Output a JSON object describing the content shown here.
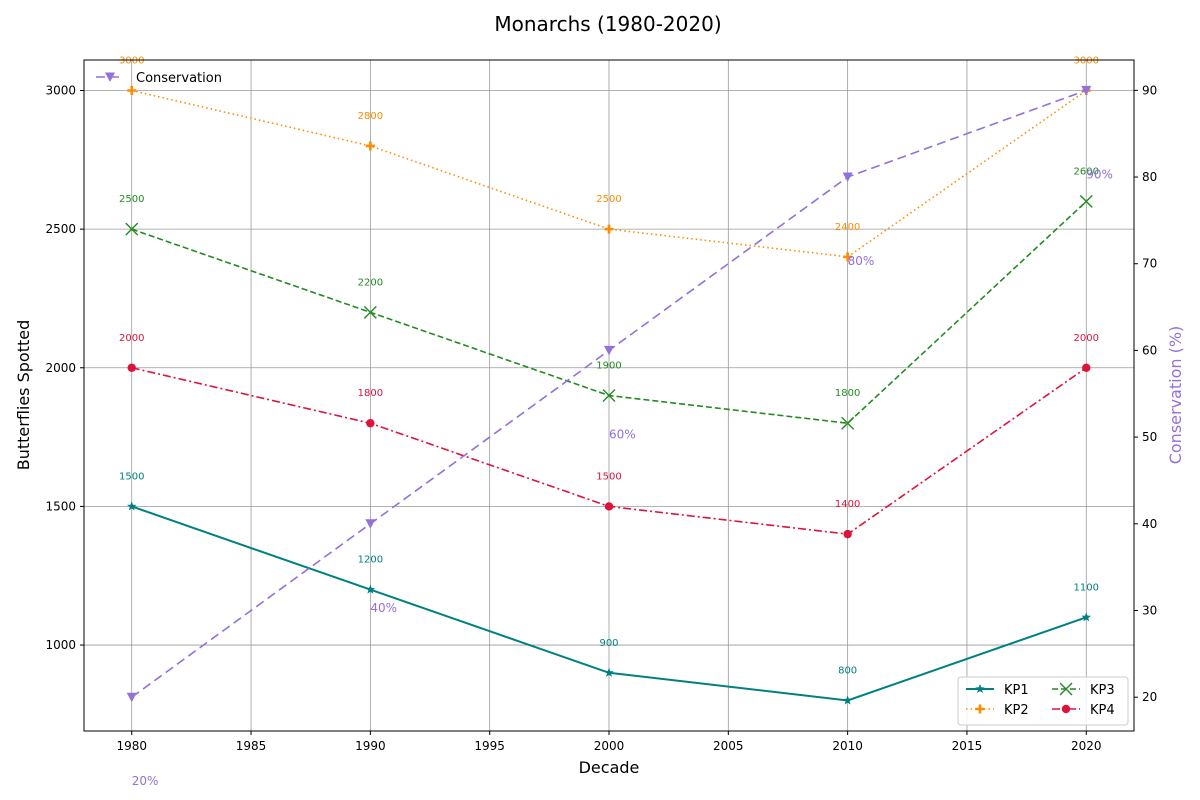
{
  "chart_data": {
    "type": "line",
    "title": "Monarchs (1980-2020)",
    "xlabel": "Decade",
    "ylabel": "Butterflies Spotted",
    "ylabel_right": "Conservation (%)",
    "x": [
      1980,
      1990,
      2000,
      2010,
      2020
    ],
    "xlim": [
      1978,
      2022
    ],
    "ylim": [
      690,
      3110
    ],
    "ylim_right": [
      16.1,
      93.5
    ],
    "x_ticks": [
      1980,
      1985,
      1990,
      1995,
      2000,
      2005,
      2010,
      2015,
      2020
    ],
    "y_ticks": [
      1000,
      1500,
      2000,
      2500,
      3000
    ],
    "y_ticks_right": [
      20,
      30,
      40,
      50,
      60,
      70,
      80,
      90
    ],
    "grid": true,
    "series": [
      {
        "name": "KP1",
        "values": [
          1500,
          1200,
          900,
          800,
          1100
        ],
        "labels": [
          "1500",
          "1200",
          "900",
          "800",
          "1100"
        ],
        "color": "#008080",
        "marker": "star",
        "dash": "solid"
      },
      {
        "name": "KP2",
        "values": [
          3000,
          2800,
          2500,
          2400,
          3000
        ],
        "labels": [
          "3000",
          "2800",
          "2500",
          "2400",
          "3000"
        ],
        "color": "#ff8c00",
        "marker": "plus",
        "dash": "dotted"
      },
      {
        "name": "KP3",
        "values": [
          2500,
          2200,
          1900,
          1800,
          2600
        ],
        "labels": [
          "2500",
          "2200",
          "1900",
          "1800",
          "2600"
        ],
        "color": "#228b22",
        "marker": "x",
        "dash": "dashed"
      },
      {
        "name": "KP4",
        "values": [
          2000,
          1800,
          1500,
          1400,
          2000
        ],
        "labels": [
          "2000",
          "1800",
          "1500",
          "1400",
          "2000"
        ],
        "color": "#dc143c",
        "marker": "circle",
        "dash": "dashdot"
      }
    ],
    "secondary_series": {
      "name": "Conservation",
      "values": [
        20,
        40,
        60,
        80,
        90
      ],
      "labels": [
        "20%",
        "40%",
        "60%",
        "80%",
        "90%"
      ],
      "color": "#9370db",
      "marker": "triangle-down",
      "dash": "dashed"
    },
    "legend_primary_placement": "lower-right",
    "legend_secondary_placement": "upper-left"
  }
}
